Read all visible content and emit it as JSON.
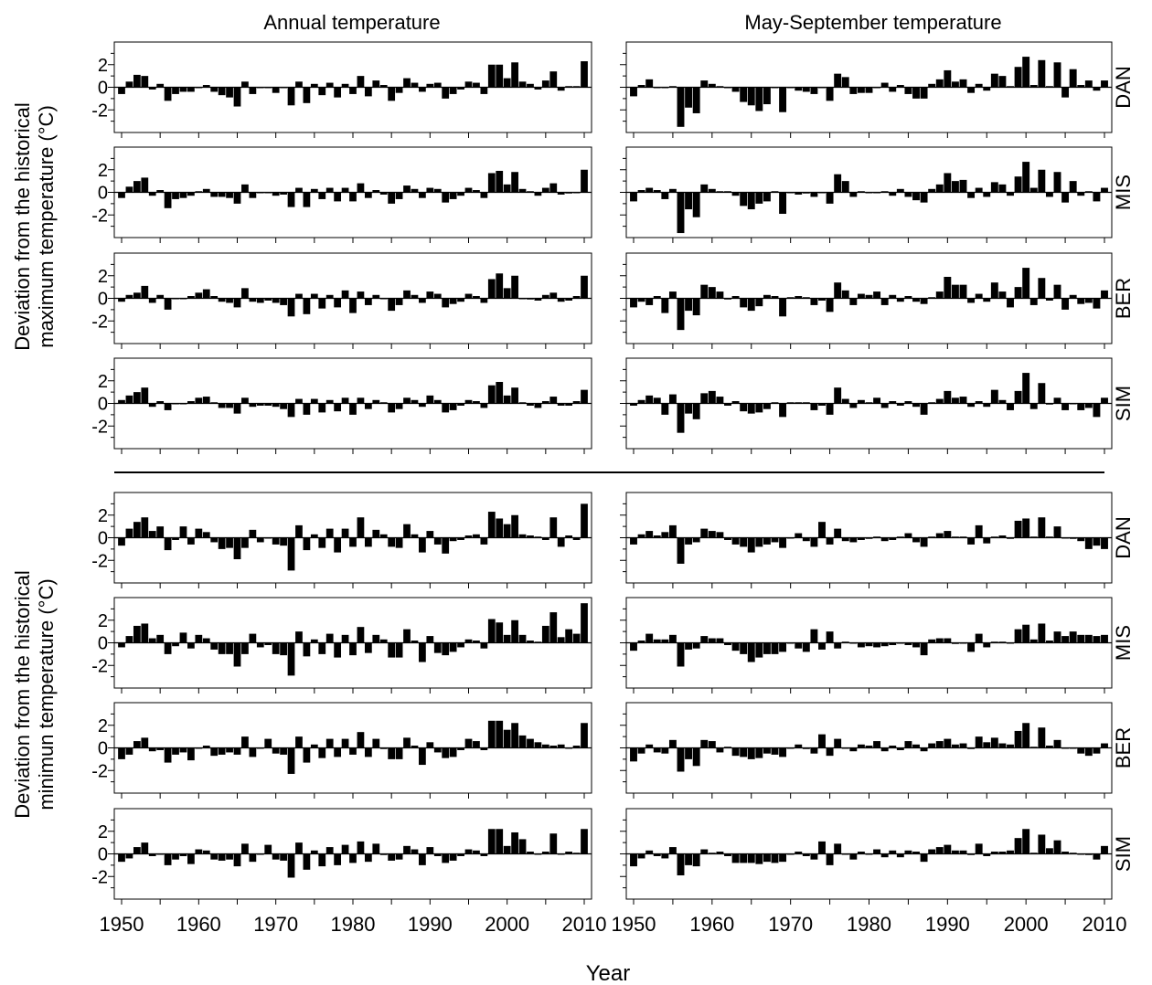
{
  "figure": {
    "col_titles": [
      "Annual temperature",
      "May-September temperature"
    ],
    "xlabel": "Year",
    "ylabel_top": [
      "Deviation from the historical",
      "maximum temperature (°C)"
    ],
    "ylabel_bottom": [
      "Deviation from the historical",
      "minimun temperature (°C)"
    ],
    "station_labels": [
      "DAN",
      "MIS",
      "BER",
      "SIM"
    ],
    "x_ticks": [
      1950,
      1960,
      1970,
      1980,
      1990,
      2000,
      2010
    ],
    "y_ticks": [
      2,
      0,
      -2
    ],
    "y_tick_labels": [
      "2",
      "0",
      "-2"
    ],
    "bar_color": "#000000"
  },
  "chart_data": [
    {
      "type": "bar",
      "panel": "max-annual-DAN",
      "group": "maximum",
      "period": "Annual temperature",
      "station": "DAN",
      "years": [
        1950,
        2010
      ],
      "ylim": [
        -4,
        4
      ],
      "values": [
        -0.6,
        0.5,
        1.1,
        1.0,
        -0.2,
        0.3,
        -1.2,
        -0.6,
        -0.4,
        -0.4,
        0.0,
        0.2,
        -0.4,
        -0.7,
        -0.9,
        -1.7,
        0.5,
        -0.6,
        0.0,
        0.0,
        -0.5,
        0.0,
        -1.6,
        0.5,
        -1.4,
        0.3,
        -0.7,
        0.4,
        -0.9,
        0.3,
        -0.6,
        1.0,
        -0.8,
        0.6,
        0.2,
        -1.2,
        -0.5,
        0.8,
        0.4,
        -0.4,
        0.3,
        0.4,
        -1.0,
        -0.6,
        -0.2,
        0.5,
        0.4,
        -0.6,
        2.0,
        2.0,
        0.8,
        2.2,
        0.5,
        0.3,
        -0.2,
        0.6,
        1.4,
        -0.3,
        0.1,
        0.1,
        2.3
      ]
    },
    {
      "type": "bar",
      "panel": "max-summer-DAN",
      "group": "maximum",
      "period": "May-September temperature",
      "station": "DAN",
      "years": [
        1950,
        2010
      ],
      "ylim": [
        -4,
        4
      ],
      "values": [
        -0.8,
        0.2,
        0.7,
        0.0,
        0.0,
        0.1,
        -3.5,
        -1.8,
        -2.3,
        0.6,
        0.3,
        0.1,
        0.0,
        -0.4,
        -1.3,
        -1.6,
        -2.1,
        -1.5,
        0.0,
        -2.2,
        0.0,
        -0.3,
        -0.4,
        -0.6,
        0.0,
        -1.2,
        1.2,
        0.9,
        -0.6,
        -0.5,
        -0.5,
        0.0,
        0.4,
        -0.4,
        0.2,
        -0.6,
        -1.0,
        -1.0,
        0.3,
        0.7,
        1.5,
        0.5,
        0.7,
        -0.5,
        0.3,
        -0.3,
        1.2,
        1.0,
        0.1,
        1.8,
        2.7,
        0.2,
        2.4,
        0.1,
        2.2,
        -0.9,
        1.6,
        0.2,
        0.6,
        -0.3,
        0.6
      ]
    },
    {
      "type": "bar",
      "panel": "max-annual-MIS",
      "group": "maximum",
      "period": "Annual temperature",
      "station": "MIS",
      "years": [
        1950,
        2010
      ],
      "ylim": [
        -4,
        4
      ],
      "values": [
        -0.5,
        0.5,
        1.0,
        1.3,
        -0.3,
        0.2,
        -1.4,
        -0.6,
        -0.5,
        -0.3,
        0.1,
        0.3,
        -0.4,
        -0.4,
        -0.5,
        -1.0,
        0.7,
        -0.5,
        0.0,
        0.0,
        -0.3,
        -0.2,
        -1.3,
        0.4,
        -1.3,
        0.3,
        -0.6,
        0.4,
        -0.8,
        0.4,
        -0.8,
        0.8,
        -0.5,
        0.2,
        -0.2,
        -1.0,
        -0.6,
        0.6,
        0.3,
        -0.5,
        0.4,
        0.3,
        -0.9,
        -0.6,
        -0.3,
        0.4,
        0.2,
        -0.5,
        1.7,
        1.9,
        0.7,
        1.8,
        0.3,
        0.1,
        -0.3,
        0.4,
        0.8,
        -0.2,
        -0.1,
        0.0,
        2.0
      ]
    },
    {
      "type": "bar",
      "panel": "max-summer-MIS",
      "group": "maximum",
      "period": "May-September temperature",
      "station": "MIS",
      "years": [
        1950,
        2010
      ],
      "ylim": [
        -4,
        4
      ],
      "values": [
        -0.8,
        0.2,
        0.4,
        0.2,
        -0.6,
        0.3,
        -3.6,
        -1.5,
        -2.2,
        0.7,
        0.3,
        0.1,
        0.1,
        -0.3,
        -1.2,
        -1.5,
        -1.0,
        -0.8,
        0.1,
        -1.9,
        0.0,
        -0.2,
        -0.1,
        -0.4,
        0.0,
        -1.0,
        1.6,
        1.0,
        -0.4,
        0.1,
        0.0,
        0.0,
        0.1,
        -0.3,
        0.3,
        -0.4,
        -0.7,
        -0.9,
        0.3,
        0.7,
        1.7,
        1.0,
        1.1,
        -0.5,
        0.4,
        -0.4,
        0.9,
        0.7,
        -0.3,
        1.4,
        2.7,
        0.4,
        2.0,
        -0.4,
        1.8,
        -0.9,
        1.0,
        -0.3,
        0.1,
        -0.8,
        0.4
      ]
    },
    {
      "type": "bar",
      "panel": "max-annual-BER",
      "group": "maximum",
      "period": "Annual temperature",
      "station": "BER",
      "years": [
        1950,
        2010
      ],
      "ylim": [
        -4,
        4
      ],
      "values": [
        -0.3,
        0.3,
        0.5,
        1.1,
        -0.4,
        0.3,
        -1.0,
        0.0,
        0.0,
        0.2,
        0.5,
        0.8,
        0.2,
        -0.3,
        -0.4,
        -0.8,
        0.9,
        -0.3,
        -0.4,
        -0.2,
        -0.4,
        -0.6,
        -1.6,
        0.4,
        -1.4,
        0.4,
        -0.9,
        0.3,
        -0.8,
        0.7,
        -1.3,
        0.6,
        -0.6,
        0.3,
        0.0,
        -1.1,
        -0.6,
        0.7,
        0.3,
        -0.4,
        0.6,
        0.4,
        -0.8,
        -0.5,
        -0.3,
        0.4,
        0.2,
        -0.4,
        1.7,
        2.2,
        0.9,
        2.0,
        0.0,
        -0.1,
        -0.2,
        0.3,
        0.5,
        -0.3,
        -0.2,
        0.2,
        2.0
      ]
    },
    {
      "type": "bar",
      "panel": "max-summer-BER",
      "group": "maximum",
      "period": "May-September temperature",
      "station": "BER",
      "years": [
        1950,
        2010
      ],
      "ylim": [
        -4,
        4
      ],
      "values": [
        -0.8,
        -0.3,
        -0.6,
        0.2,
        -1.3,
        0.6,
        -2.8,
        -1.1,
        -1.5,
        1.2,
        1.0,
        0.6,
        -0.1,
        0.2,
        -0.8,
        -1.1,
        -0.7,
        0.3,
        0.2,
        -1.6,
        0.1,
        0.2,
        0.1,
        -0.6,
        -0.2,
        -1.2,
        1.4,
        0.7,
        -0.6,
        0.4,
        0.3,
        0.6,
        -0.6,
        0.3,
        -0.3,
        0.2,
        -0.3,
        -0.5,
        0.1,
        0.6,
        1.9,
        1.2,
        1.2,
        -0.4,
        0.4,
        -0.3,
        1.4,
        0.6,
        -0.8,
        1.0,
        2.7,
        -0.6,
        1.8,
        -0.2,
        1.2,
        -1.0,
        0.3,
        -0.5,
        -0.4,
        -0.9,
        0.7
      ]
    },
    {
      "type": "bar",
      "panel": "max-annual-SIM",
      "group": "maximum",
      "period": "Annual temperature",
      "station": "SIM",
      "years": [
        1950,
        2010
      ],
      "ylim": [
        -4,
        4
      ],
      "values": [
        0.3,
        0.7,
        1.0,
        1.4,
        -0.3,
        0.2,
        -0.6,
        0.0,
        0.0,
        0.2,
        0.5,
        0.6,
        0.1,
        -0.4,
        -0.4,
        -0.9,
        0.5,
        -0.3,
        -0.2,
        -0.2,
        -0.3,
        -0.5,
        -1.2,
        0.4,
        -1.0,
        0.4,
        -0.8,
        0.3,
        -0.7,
        0.5,
        -1.0,
        0.5,
        -0.5,
        0.3,
        0.1,
        -0.8,
        -0.5,
        0.5,
        0.3,
        -0.3,
        0.7,
        0.3,
        -0.8,
        -0.6,
        -0.2,
        0.3,
        0.2,
        -0.4,
        1.6,
        1.9,
        0.7,
        1.4,
        0.1,
        -0.2,
        -0.4,
        0.2,
        0.6,
        -0.2,
        -0.2,
        0.2,
        1.2
      ]
    },
    {
      "type": "bar",
      "panel": "max-summer-SIM",
      "group": "maximum",
      "period": "May-September temperature",
      "station": "SIM",
      "years": [
        1950,
        2010
      ],
      "ylim": [
        -4,
        4
      ],
      "values": [
        -0.2,
        0.3,
        0.7,
        0.5,
        -1.0,
        0.8,
        -2.6,
        -0.9,
        -1.4,
        0.9,
        1.1,
        0.6,
        -0.2,
        0.2,
        -0.7,
        -0.9,
        -0.8,
        -0.5,
        0.1,
        -1.2,
        0.1,
        0.1,
        0.1,
        -0.6,
        -0.2,
        -1.0,
        1.4,
        0.4,
        -0.4,
        0.3,
        0.1,
        0.5,
        -0.4,
        0.2,
        -0.2,
        0.2,
        -0.3,
        -1.0,
        0.1,
        0.4,
        1.1,
        0.5,
        0.6,
        -0.3,
        0.2,
        -0.3,
        1.2,
        0.3,
        -0.6,
        1.1,
        2.7,
        -0.5,
        1.8,
        -0.1,
        0.5,
        -0.6,
        0.0,
        -0.6,
        -0.4,
        -1.2,
        0.5
      ]
    },
    {
      "type": "bar",
      "panel": "min-annual-DAN",
      "group": "minimum",
      "period": "Annual temperature",
      "station": "DAN",
      "years": [
        1950,
        2010
      ],
      "ylim": [
        -4,
        4
      ],
      "values": [
        -0.7,
        0.8,
        1.4,
        1.8,
        0.6,
        1.0,
        -1.1,
        -0.2,
        1.0,
        -0.6,
        0.8,
        0.5,
        -0.4,
        -1.0,
        -0.9,
        -1.9,
        -0.9,
        0.7,
        -0.4,
        0.0,
        -0.6,
        -0.7,
        -2.9,
        1.1,
        -1.1,
        0.3,
        -0.9,
        0.8,
        -1.3,
        0.8,
        -0.8,
        1.8,
        -0.8,
        0.7,
        0.3,
        -0.8,
        -0.9,
        1.2,
        0.3,
        -1.3,
        0.6,
        -0.6,
        -1.4,
        -0.3,
        -0.2,
        0.2,
        0.3,
        -0.6,
        2.3,
        1.7,
        1.2,
        2.0,
        0.3,
        0.2,
        0.1,
        -0.2,
        1.8,
        -0.8,
        0.2,
        -0.2,
        3.0
      ]
    },
    {
      "type": "bar",
      "panel": "min-summer-DAN",
      "group": "minimum",
      "period": "May-September temperature",
      "station": "DAN",
      "years": [
        1950,
        2010
      ],
      "ylim": [
        -4,
        4
      ],
      "values": [
        -0.6,
        0.3,
        0.6,
        0.2,
        0.5,
        1.1,
        -2.3,
        -0.6,
        -0.4,
        0.8,
        0.6,
        0.5,
        -0.2,
        -0.6,
        -0.8,
        -1.3,
        -0.8,
        -0.6,
        -0.4,
        -0.9,
        0.0,
        0.4,
        -0.3,
        -0.8,
        1.4,
        -0.6,
        0.8,
        -0.3,
        -0.4,
        -0.2,
        -0.1,
        0.1,
        -0.3,
        -0.2,
        0.1,
        0.4,
        -0.4,
        -0.8,
        0.1,
        0.4,
        0.6,
        0.1,
        0.1,
        -0.6,
        1.1,
        -0.5,
        0.1,
        0.2,
        -0.1,
        1.5,
        1.7,
        0.1,
        1.8,
        0.1,
        1.0,
        0.0,
        -0.1,
        -0.3,
        -1.0,
        -0.7,
        -1.0
      ]
    },
    {
      "type": "bar",
      "panel": "min-annual-MIS",
      "group": "minimum",
      "period": "Annual temperature",
      "station": "MIS",
      "years": [
        1950,
        2010
      ],
      "ylim": [
        -4,
        4
      ],
      "values": [
        -0.4,
        0.6,
        1.5,
        1.7,
        0.4,
        0.7,
        -1.0,
        -0.3,
        0.9,
        -0.5,
        0.7,
        0.4,
        -0.6,
        -1.0,
        -1.0,
        -2.1,
        -1.0,
        0.8,
        -0.4,
        -0.2,
        -1.0,
        -1.1,
        -2.9,
        1.0,
        -1.2,
        0.3,
        -1.0,
        0.8,
        -1.3,
        0.7,
        -1.1,
        1.4,
        -0.9,
        0.7,
        0.3,
        -1.3,
        -1.3,
        1.2,
        0.2,
        -1.7,
        0.6,
        -0.9,
        -1.1,
        -0.8,
        -0.4,
        0.3,
        0.2,
        -0.5,
        2.1,
        1.8,
        0.7,
        2.0,
        0.7,
        0.2,
        0.1,
        1.5,
        2.7,
        0.5,
        1.2,
        0.8,
        3.5
      ]
    },
    {
      "type": "bar",
      "panel": "min-summer-MIS",
      "group": "minimum",
      "period": "May-September temperature",
      "station": "MIS",
      "years": [
        1950,
        2010
      ],
      "ylim": [
        -4,
        4
      ],
      "values": [
        -0.7,
        0.2,
        0.8,
        0.3,
        0.3,
        0.7,
        -2.1,
        -0.6,
        -0.5,
        0.6,
        0.4,
        0.4,
        -0.2,
        -0.7,
        -1.0,
        -1.7,
        -1.3,
        -1.0,
        -1.0,
        -0.8,
        0.0,
        -0.5,
        -0.8,
        1.2,
        -0.6,
        1.0,
        -0.5,
        0.1,
        0.0,
        -0.4,
        -0.3,
        -0.4,
        -0.3,
        -0.2,
        0.0,
        -0.2,
        -0.4,
        -1.1,
        0.3,
        0.4,
        0.4,
        -0.1,
        0.0,
        -0.8,
        0.8,
        -0.4,
        0.1,
        0.1,
        0.0,
        1.2,
        1.6,
        0.3,
        1.7,
        0.2,
        1.0,
        0.6,
        1.0,
        0.7,
        0.7,
        0.6,
        0.7
      ]
    },
    {
      "type": "bar",
      "panel": "min-annual-BER",
      "group": "minimum",
      "period": "Annual temperature",
      "station": "BER",
      "years": [
        1950,
        2010
      ],
      "ylim": [
        -4,
        4
      ],
      "values": [
        -1.0,
        -0.6,
        0.6,
        0.9,
        -0.3,
        -0.2,
        -1.3,
        -0.6,
        -0.4,
        -1.1,
        0.0,
        0.2,
        -0.7,
        -0.6,
        -0.4,
        -0.6,
        1.0,
        -0.8,
        0.0,
        0.8,
        -0.5,
        -0.6,
        -2.3,
        1.0,
        -1.3,
        0.3,
        -0.9,
        0.8,
        -0.8,
        0.8,
        -0.6,
        1.4,
        -0.8,
        0.8,
        -0.1,
        -1.0,
        -1.0,
        0.9,
        0.2,
        -1.5,
        0.5,
        -0.4,
        -0.9,
        -0.8,
        -0.2,
        0.8,
        0.6,
        -0.2,
        2.4,
        2.4,
        1.6,
        2.2,
        1.1,
        0.8,
        0.5,
        0.3,
        0.2,
        0.3,
        0.0,
        0.2,
        2.2
      ]
    },
    {
      "type": "bar",
      "panel": "min-summer-BER",
      "group": "minimum",
      "period": "May-September temperature",
      "station": "BER",
      "years": [
        1950,
        2010
      ],
      "ylim": [
        -4,
        4
      ],
      "values": [
        -1.2,
        -0.5,
        0.3,
        -0.4,
        -0.5,
        0.7,
        -2.1,
        -1.0,
        -1.6,
        0.7,
        0.6,
        -0.4,
        0.1,
        -0.7,
        -0.8,
        -1.0,
        -0.9,
        -0.5,
        -0.6,
        -0.8,
        0.0,
        0.3,
        -0.1,
        -0.5,
        1.2,
        -0.7,
        0.8,
        0.0,
        -0.3,
        0.3,
        0.2,
        0.6,
        -0.3,
        0.2,
        -0.2,
        0.6,
        0.3,
        -0.3,
        0.4,
        0.6,
        0.8,
        0.3,
        0.4,
        -0.1,
        1.0,
        0.5,
        0.9,
        0.4,
        0.3,
        1.5,
        2.2,
        0.1,
        1.8,
        0.2,
        0.7,
        0.0,
        0.0,
        -0.5,
        -0.7,
        -0.5,
        0.4
      ]
    },
    {
      "type": "bar",
      "panel": "min-annual-SIM",
      "group": "minimum",
      "period": "Annual temperature",
      "station": "SIM",
      "years": [
        1950,
        2010
      ],
      "ylim": [
        -4,
        4
      ],
      "values": [
        -0.7,
        -0.4,
        0.6,
        1.0,
        -0.2,
        0.0,
        -1.0,
        -0.5,
        -0.2,
        -0.9,
        0.4,
        0.3,
        -0.5,
        -0.6,
        -0.5,
        -1.1,
        0.9,
        -0.7,
        0.0,
        0.8,
        -0.5,
        -0.6,
        -2.1,
        1.0,
        -1.4,
        0.3,
        -1.1,
        0.6,
        -1.0,
        0.8,
        -0.8,
        1.1,
        -0.7,
        0.9,
        -0.1,
        -0.6,
        -0.5,
        0.7,
        0.4,
        -1.0,
        0.6,
        -0.2,
        -0.8,
        -0.6,
        -0.2,
        0.4,
        0.3,
        -0.2,
        2.2,
        2.2,
        0.7,
        1.9,
        1.3,
        0.2,
        0.0,
        0.2,
        1.8,
        0.0,
        0.2,
        0.1,
        2.2
      ]
    },
    {
      "type": "bar",
      "panel": "min-summer-SIM",
      "group": "minimum",
      "period": "May-September temperature",
      "station": "SIM",
      "years": [
        1950,
        2010
      ],
      "ylim": [
        -4,
        4
      ],
      "values": [
        -1.1,
        -0.4,
        0.3,
        -0.2,
        -0.4,
        0.6,
        -1.9,
        -1.0,
        -1.1,
        0.4,
        0.1,
        0.2,
        -0.2,
        -0.8,
        -0.8,
        -0.8,
        -0.9,
        -0.7,
        -0.8,
        -0.7,
        0.0,
        0.2,
        -0.2,
        -0.5,
        1.1,
        -1.0,
        0.9,
        0.0,
        -0.5,
        0.2,
        0.0,
        0.4,
        -0.3,
        0.3,
        -0.3,
        0.3,
        0.2,
        -0.7,
        0.4,
        0.6,
        0.8,
        0.3,
        0.3,
        -0.1,
        0.9,
        -0.2,
        0.2,
        0.2,
        0.3,
        1.4,
        2.2,
        0.1,
        1.7,
        0.5,
        1.2,
        0.2,
        0.1,
        0.0,
        -0.1,
        -0.5,
        0.7
      ]
    }
  ]
}
